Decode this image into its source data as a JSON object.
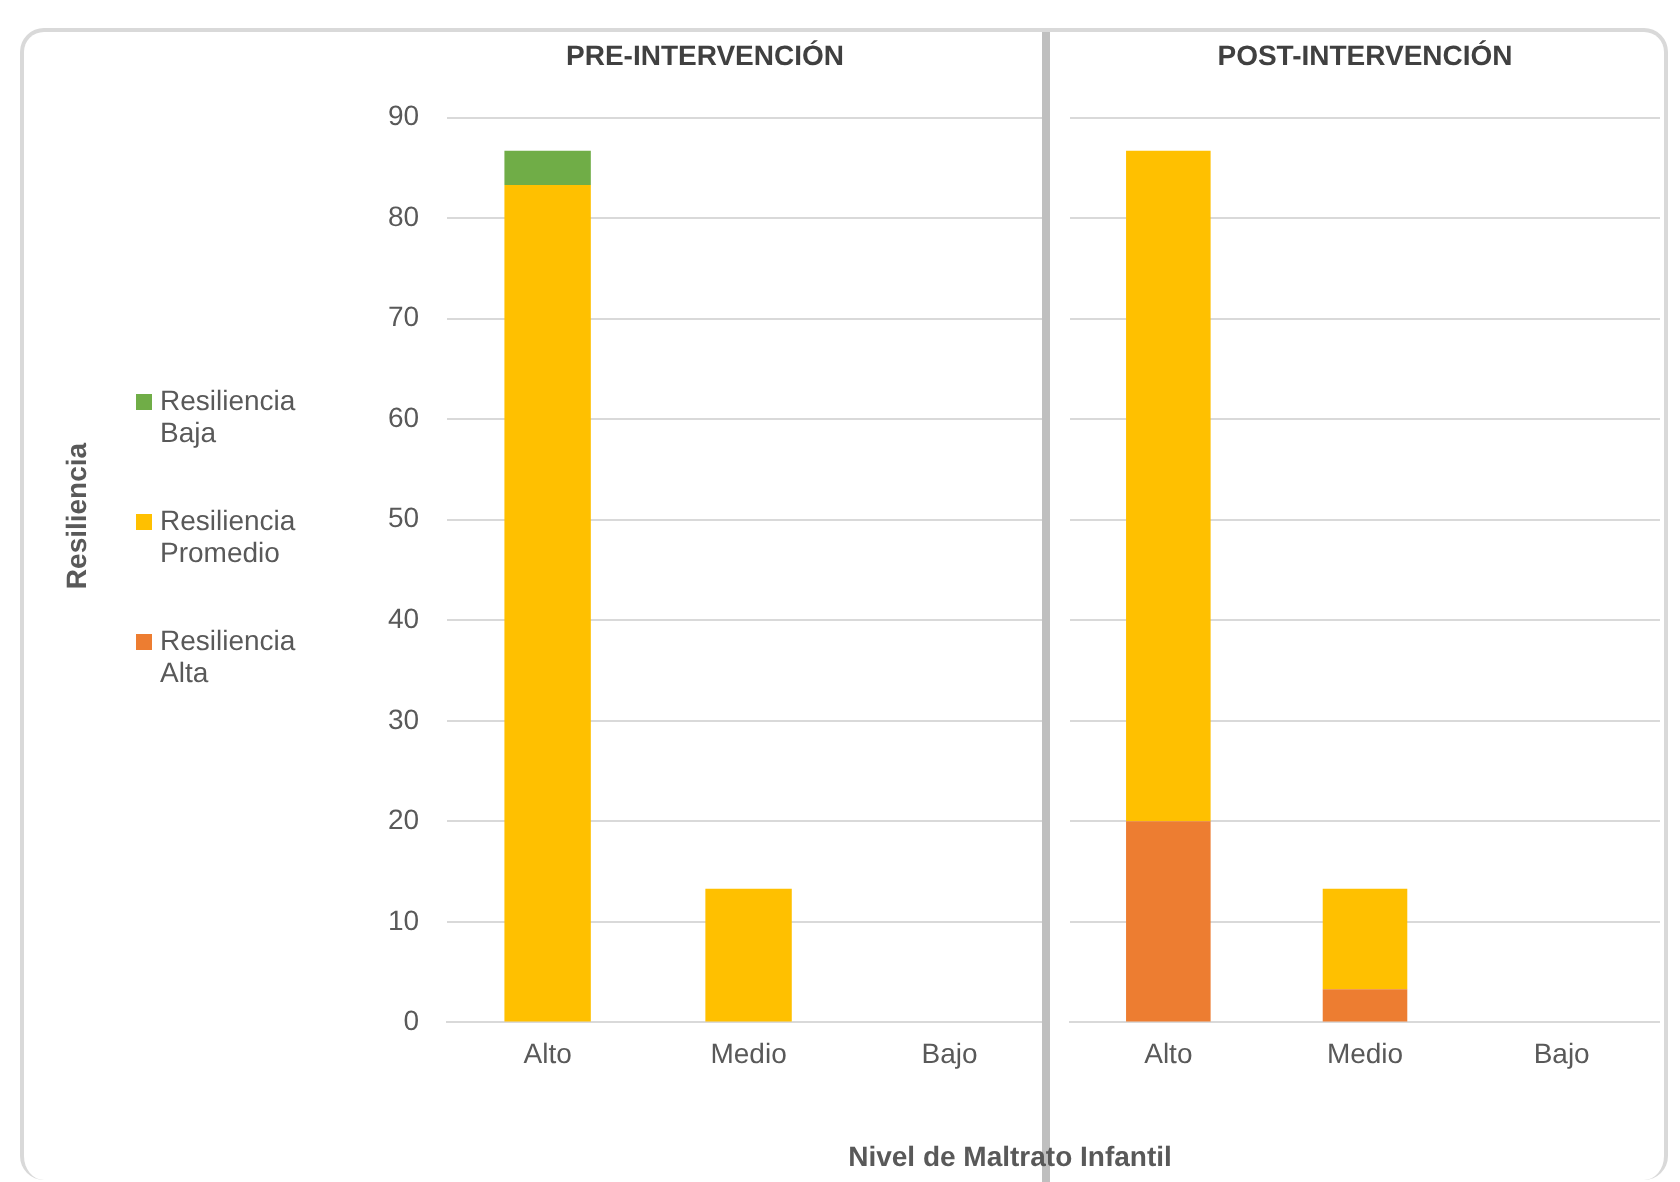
{
  "chart_data": [
    {
      "type": "bar",
      "title": "PRE-INTERVENCIÓN",
      "xlabel": "Nivel de Maltrato Infantil",
      "ylabel": "Resiliencia",
      "categories": [
        "Alto",
        "Medio",
        "Bajo"
      ],
      "stacked": true,
      "ylim": [
        0,
        90
      ],
      "yticks": [
        0,
        10,
        20,
        30,
        40,
        50,
        60,
        70,
        80,
        90
      ],
      "grid": "y",
      "legend": "left",
      "series": [
        {
          "name": "Resiliencia Alta",
          "color": "#ed7d31",
          "values": [
            0,
            0,
            0
          ]
        },
        {
          "name": "Resiliencia Promedio",
          "color": "#ffc000",
          "values": [
            83.3,
            13.3,
            0
          ]
        },
        {
          "name": "Resiliencia Baja",
          "color": "#70ad47",
          "values": [
            3.4,
            0,
            0
          ]
        }
      ]
    },
    {
      "type": "bar",
      "title": "POST-INTERVENCIÓN",
      "categories": [
        "Alto",
        "Medio",
        "Bajo"
      ],
      "stacked": true,
      "ylim": [
        0,
        90
      ],
      "yticks": [
        0,
        10,
        20,
        30,
        40,
        50,
        60,
        70,
        80,
        90
      ],
      "grid": "y",
      "tick_labels": "x",
      "series": [
        {
          "color": "#ed7d31",
          "values": [
            20,
            3.3,
            0
          ]
        },
        {
          "color": "#ffc000",
          "values": [
            66.7,
            10,
            0
          ]
        },
        {
          "color": "#70ad47",
          "values": [
            0,
            0,
            0
          ]
        }
      ]
    }
  ]
}
